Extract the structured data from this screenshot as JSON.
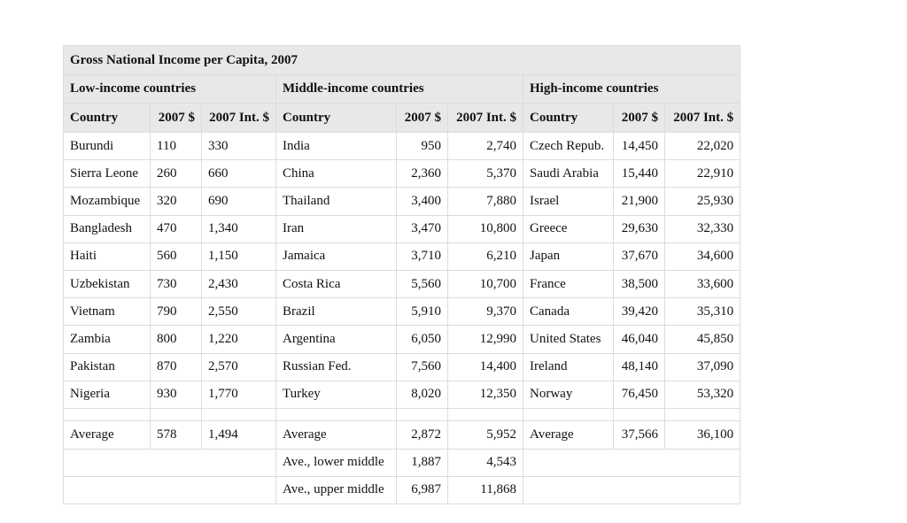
{
  "title": "Gross National Income per Capita, 2007",
  "groups": [
    "Low-income countries",
    "Middle-income countries",
    "High-income countries"
  ],
  "columns": [
    [
      "Country",
      "2007 $",
      "2007 Int. $"
    ],
    [
      "Country",
      "2007 $",
      "2007 Int. $"
    ],
    [
      "Country",
      "2007 $",
      "2007 Int. $"
    ]
  ],
  "rows": [
    [
      "Burundi",
      "110",
      "330",
      "India",
      "950",
      "2,740",
      "Czech Repub.",
      "14,450",
      "22,020"
    ],
    [
      "Sierra Leone",
      "260",
      "660",
      "China",
      "2,360",
      "5,370",
      "Saudi Arabia",
      "15,440",
      "22,910"
    ],
    [
      "Mozambique",
      "320",
      "690",
      "Thailand",
      "3,400",
      "7,880",
      "Israel",
      "21,900",
      "25,930"
    ],
    [
      "Bangladesh",
      "470",
      "1,340",
      "Iran",
      "3,470",
      "10,800",
      "Greece",
      "29,630",
      "32,330"
    ],
    [
      "Haiti",
      "560",
      "1,150",
      "Jamaica",
      "3,710",
      "6,210",
      "Japan",
      "37,670",
      "34,600"
    ],
    [
      "Uzbekistan",
      "730",
      "2,430",
      "Costa Rica",
      "5,560",
      "10,700",
      "France",
      "38,500",
      "33,600"
    ],
    [
      "Vietnam",
      "790",
      "2,550",
      "Brazil",
      "5,910",
      "9,370",
      "Canada",
      "39,420",
      "35,310"
    ],
    [
      "Zambia",
      "800",
      "1,220",
      "Argentina",
      "6,050",
      "12,990",
      "United States",
      "46,040",
      "45,850"
    ],
    [
      "Pakistan",
      "870",
      "2,570",
      "Russian Fed.",
      "7,560",
      "14,400",
      "Ireland",
      "48,140",
      "37,090"
    ],
    [
      "Nigeria",
      "930",
      "1,770",
      "Turkey",
      "8,020",
      "12,350",
      "Norway",
      "76,450",
      "53,320"
    ]
  ],
  "average": [
    "Average",
    "578",
    "1,494",
    "Average",
    "2,872",
    "5,952",
    "Average",
    "37,566",
    "36,100"
  ],
  "middle_averages": [
    [
      "Ave., lower middle",
      "1,887",
      "4,543"
    ],
    [
      "Ave., upper middle",
      "6,987",
      "11,868"
    ]
  ]
}
